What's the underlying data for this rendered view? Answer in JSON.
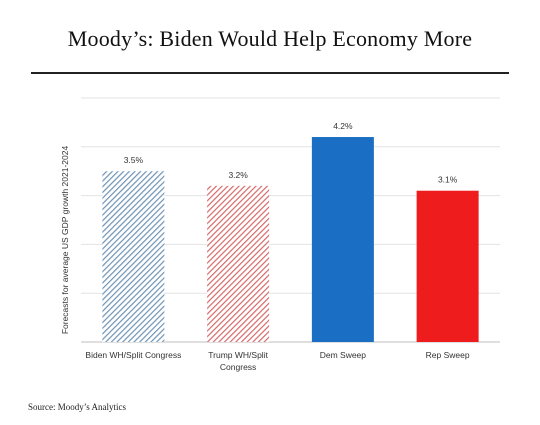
{
  "title": "Moody’s: Biden Would Help Economy More",
  "source": "Source: Moody’s Analytics",
  "chart_data": {
    "type": "bar",
    "title": "",
    "xlabel": "",
    "ylabel": "Forecasts for average US GDP growth 2021-2024",
    "ylim": [
      0,
      5
    ],
    "grid": true,
    "categories": [
      [
        "Biden WH/Split Congress"
      ],
      [
        "Trump WH/Split",
        "Congress"
      ],
      [
        "Dem Sweep"
      ],
      [
        "Rep Sweep"
      ]
    ],
    "values": [
      3.5,
      3.2,
      4.2,
      3.1
    ],
    "data_labels": [
      "3.5%",
      "3.2%",
      "4.2%",
      "3.1%"
    ],
    "bar_styles": [
      {
        "fill": "hatched",
        "color": "#6f93b5"
      },
      {
        "fill": "hatched",
        "color": "#d46a6a"
      },
      {
        "fill": "solid",
        "color": "#1a6fc4"
      },
      {
        "fill": "solid",
        "color": "#ee1c1c"
      }
    ]
  }
}
